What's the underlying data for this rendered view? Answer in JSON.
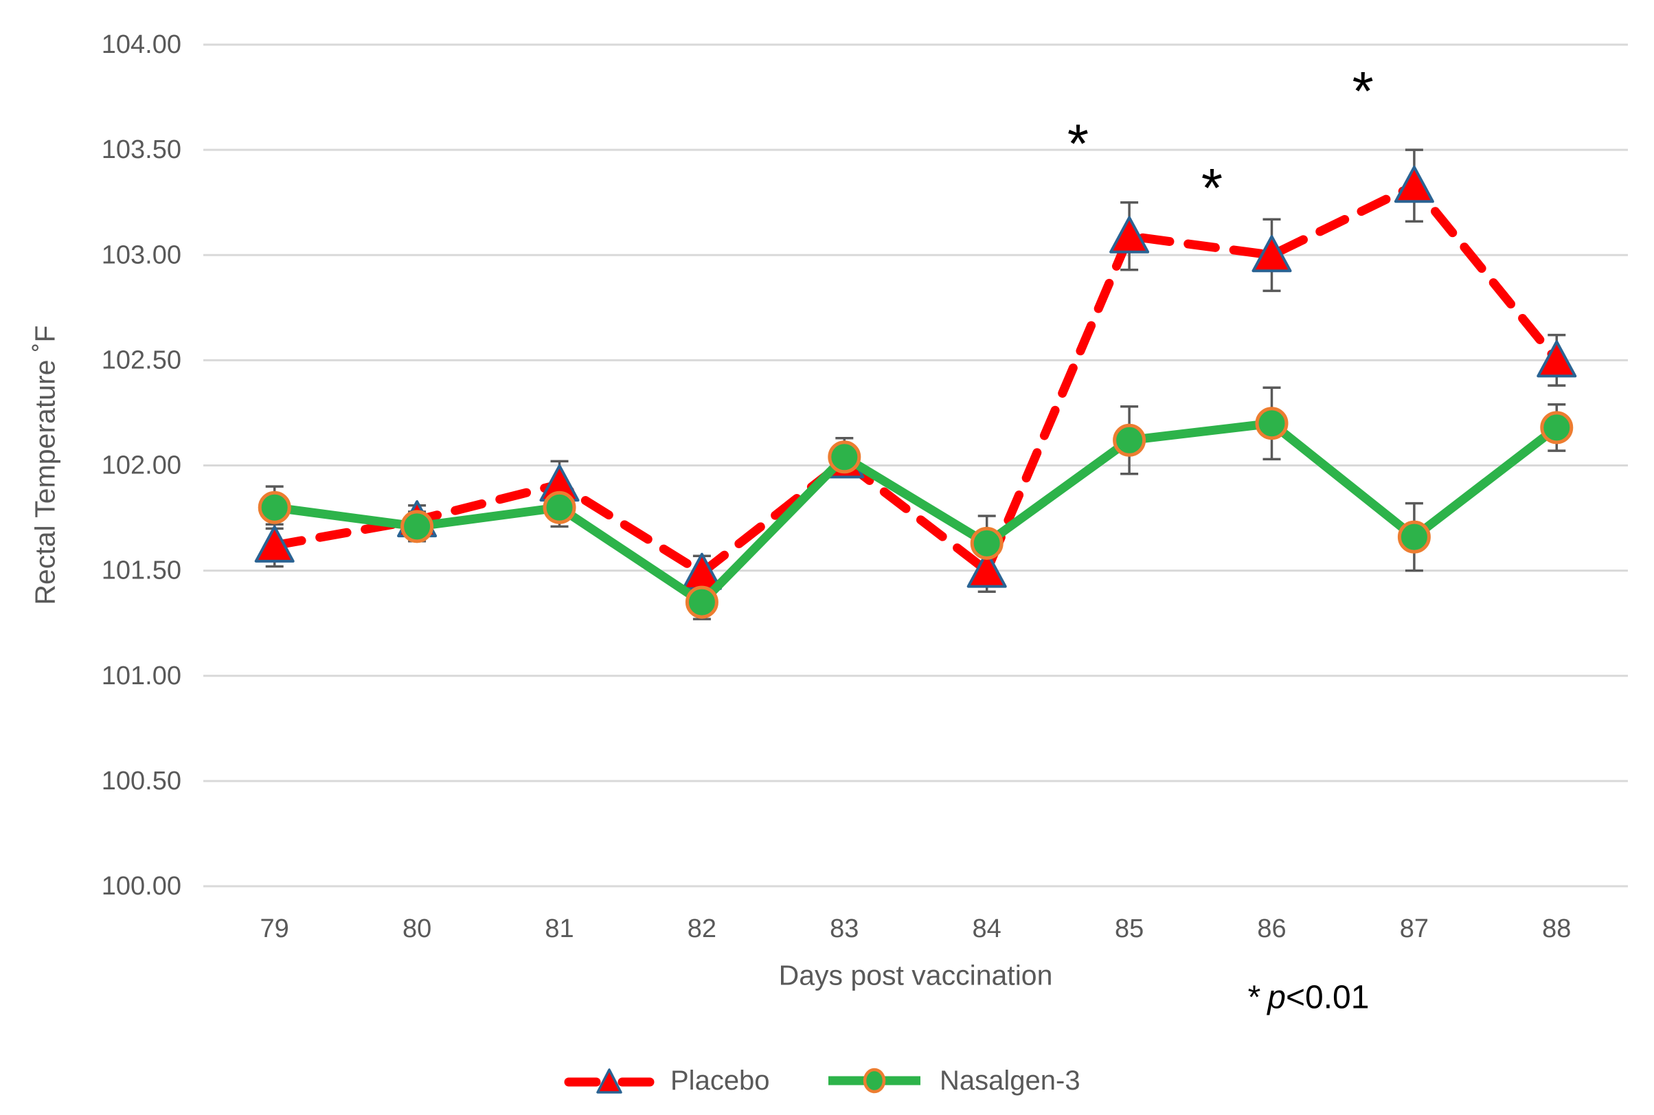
{
  "chart_data": {
    "type": "line",
    "title": "",
    "xlabel": "Days post vaccination",
    "ylabel": "Rectal Temperature ˚F",
    "x_categories": [
      "79",
      "80",
      "81",
      "82",
      "83",
      "84",
      "85",
      "86",
      "87",
      "88"
    ],
    "ylim": [
      100.0,
      104.0
    ],
    "ytick_step": 0.5,
    "ytick_labels": [
      "100.00",
      "100.50",
      "101.00",
      "101.50",
      "102.00",
      "102.50",
      "103.00",
      "103.50",
      "104.00"
    ],
    "grid": "horizontal-on",
    "legend_position": "bottom",
    "series": [
      {
        "name": "Placebo",
        "line_style": "dashed",
        "color": "#FF0000",
        "marker": "triangle",
        "marker_fill": "#FF0000",
        "marker_border": "#2A6393",
        "values": [
          101.62,
          101.74,
          101.91,
          101.49,
          102.02,
          101.5,
          103.09,
          103.0,
          103.33,
          102.5
        ],
        "errors": [
          0.1,
          0.07,
          0.11,
          0.08,
          0.06,
          0.1,
          0.16,
          0.17,
          0.17,
          0.12
        ]
      },
      {
        "name": "Nasalgen-3",
        "line_style": "solid",
        "color": "#2DB34A",
        "marker": "circle",
        "marker_fill": "#2DB34A",
        "marker_border": "#ED7D31",
        "values": [
          101.8,
          101.71,
          101.8,
          101.35,
          102.04,
          101.63,
          102.12,
          102.2,
          101.66,
          102.18
        ],
        "errors": [
          0.1,
          0.07,
          0.09,
          0.08,
          0.09,
          0.13,
          0.16,
          0.17,
          0.16,
          0.11
        ]
      }
    ],
    "annotations": [
      {
        "symbol": "*",
        "day_x": 84.64,
        "value_y": 103.59
      },
      {
        "symbol": "*",
        "day_x": 85.58,
        "value_y": 103.38
      },
      {
        "symbol": "*",
        "day_x": 86.64,
        "value_y": 103.84
      }
    ],
    "error_bar_color": "#595959",
    "gridline_color": "#D9D9D9",
    "axis_text_color": "#595959"
  },
  "note": {
    "star": "*",
    "p": "p",
    "inequality": "<0.01"
  }
}
